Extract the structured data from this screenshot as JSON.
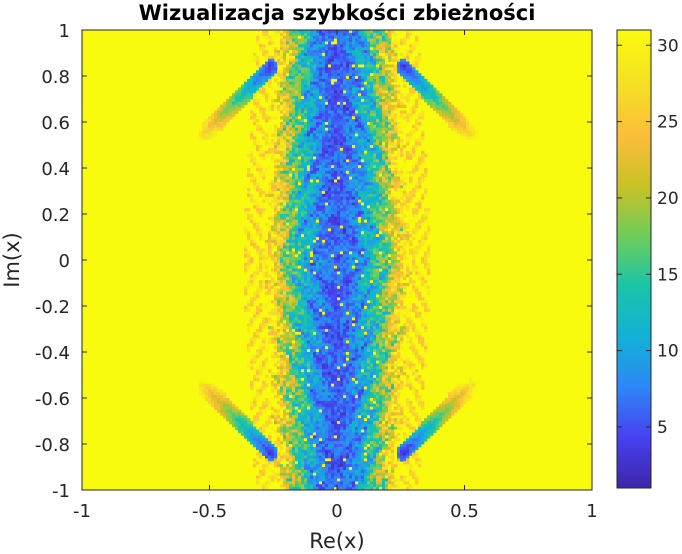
{
  "chart_data": {
    "type": "heatmap",
    "title": "Wizualizacja szybkości zbieżności",
    "xlabel": "Re(x)",
    "ylabel": "Im(x)",
    "xlim": [
      -1,
      1
    ],
    "ylim": [
      -1,
      1
    ],
    "xticks": [
      -1,
      -0.5,
      0,
      0.5,
      1
    ],
    "xtick_labels": [
      "-1",
      "-0.5",
      "0",
      "0.5",
      "1"
    ],
    "yticks": [
      -1,
      -0.8,
      -0.6,
      -0.4,
      -0.2,
      0,
      0.2,
      0.4,
      0.6,
      0.8,
      1
    ],
    "ytick_labels": [
      "-1",
      "-0.8",
      "-0.6",
      "-0.4",
      "-0.2",
      "0",
      "0.2",
      "0.4",
      "0.6",
      "0.8",
      "1"
    ],
    "colorbar": {
      "range": [
        1,
        31
      ],
      "ticks": [
        5,
        10,
        15,
        20,
        25,
        30
      ],
      "tick_labels": [
        "5",
        "10",
        "15",
        "20",
        "25",
        "30"
      ],
      "colormap": "parula"
    },
    "colormap_stops": [
      "#3e26a8",
      "#4741f1",
      "#2e87f7",
      "#12b1d6",
      "#1ac4a8",
      "#6ecd59",
      "#c9c126",
      "#fcbe3c",
      "#f5e024",
      "#f9fb0e"
    ],
    "background_value": 31,
    "features": [
      {
        "name": "central-band",
        "x_halfwidth": 0.3,
        "core_value": 7
      },
      {
        "name": "upper-left-arm",
        "from": [
          -0.26,
          0.84
        ],
        "to": [
          -0.52,
          0.55
        ]
      },
      {
        "name": "upper-right-arm",
        "from": [
          0.26,
          0.84
        ],
        "to": [
          0.52,
          0.55
        ]
      },
      {
        "name": "lower-left-arm",
        "from": [
          -0.26,
          -0.84
        ],
        "to": [
          -0.52,
          -0.55
        ]
      },
      {
        "name": "lower-right-arm",
        "from": [
          0.26,
          -0.84
        ],
        "to": [
          0.52,
          -0.55
        ]
      }
    ]
  }
}
